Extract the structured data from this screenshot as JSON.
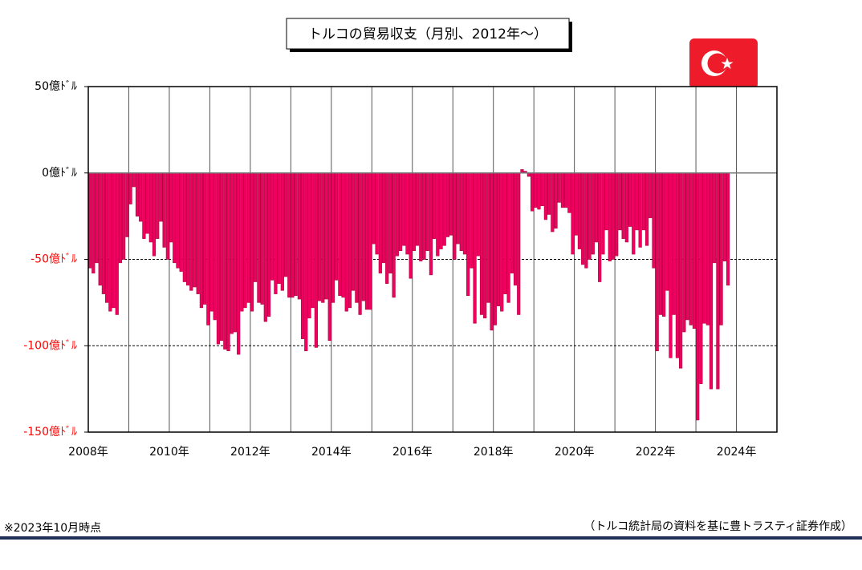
{
  "chart_data": {
    "type": "bar",
    "title": "トルコの貿易収支（月別、2012年～）",
    "note": "※2023年10月時点",
    "source": "（トルコ統計局の資料を基に豊トラスティ証券作成）",
    "color": "#f0005f",
    "negative_label_color": "#ff0000",
    "xlim": [
      2008,
      2025
    ],
    "xticks": [
      {
        "value": 2008,
        "label": "2008年"
      },
      {
        "value": 2010,
        "label": "2010年"
      },
      {
        "value": 2012,
        "label": "2012年"
      },
      {
        "value": 2014,
        "label": "2014年"
      },
      {
        "value": 2016,
        "label": "2016年"
      },
      {
        "value": 2018,
        "label": "2018年"
      },
      {
        "value": 2020,
        "label": "2020年"
      },
      {
        "value": 2022,
        "label": "2022年"
      },
      {
        "value": 2024,
        "label": "2024年"
      }
    ],
    "x_minor_ticks": [
      2009,
      2011,
      2013,
      2015,
      2017,
      2019,
      2021,
      2023,
      2025
    ],
    "ylim": [
      -150,
      50
    ],
    "yticks": [
      {
        "value": 50,
        "label": "50億ﾄﾞﾙ"
      },
      {
        "value": 0,
        "label": "0億ﾄﾞﾙ"
      },
      {
        "value": -50,
        "label": "-50億ﾄﾞﾙ"
      },
      {
        "value": -100,
        "label": "-100億ﾄﾞﾙ"
      },
      {
        "value": -150,
        "label": "-150億ﾄﾞﾙ"
      }
    ],
    "dashed_grid": [
      -50,
      -100
    ],
    "x": [
      2008,
      2008.083,
      2008.167,
      2008.25,
      2008.333,
      2008.417,
      2008.5,
      2008.583,
      2008.667,
      2008.75,
      2008.833,
      2008.917,
      2009,
      2009.083,
      2009.167,
      2009.25,
      2009.333,
      2009.417,
      2009.5,
      2009.583,
      2009.667,
      2009.75,
      2009.833,
      2009.917,
      2010,
      2010.083,
      2010.167,
      2010.25,
      2010.333,
      2010.417,
      2010.5,
      2010.583,
      2010.667,
      2010.75,
      2010.833,
      2010.917,
      2011,
      2011.083,
      2011.167,
      2011.25,
      2011.333,
      2011.417,
      2011.5,
      2011.583,
      2011.667,
      2011.75,
      2011.833,
      2011.917,
      2012,
      2012.083,
      2012.167,
      2012.25,
      2012.333,
      2012.417,
      2012.5,
      2012.583,
      2012.667,
      2012.75,
      2012.833,
      2012.917,
      2013,
      2013.083,
      2013.167,
      2013.25,
      2013.333,
      2013.417,
      2013.5,
      2013.583,
      2013.667,
      2013.75,
      2013.833,
      2013.917,
      2014,
      2014.083,
      2014.167,
      2014.25,
      2014.333,
      2014.417,
      2014.5,
      2014.583,
      2014.667,
      2014.75,
      2014.833,
      2014.917,
      2015,
      2015.083,
      2015.167,
      2015.25,
      2015.333,
      2015.417,
      2015.5,
      2015.583,
      2015.667,
      2015.75,
      2015.833,
      2015.917,
      2016,
      2016.083,
      2016.167,
      2016.25,
      2016.333,
      2016.417,
      2016.5,
      2016.583,
      2016.667,
      2016.75,
      2016.833,
      2016.917,
      2017,
      2017.083,
      2017.167,
      2017.25,
      2017.333,
      2017.417,
      2017.5,
      2017.583,
      2017.667,
      2017.75,
      2017.833,
      2017.917,
      2018,
      2018.083,
      2018.167,
      2018.25,
      2018.333,
      2018.417,
      2018.5,
      2018.583,
      2018.667,
      2018.75,
      2018.833,
      2018.917,
      2019,
      2019.083,
      2019.167,
      2019.25,
      2019.333,
      2019.417,
      2019.5,
      2019.583,
      2019.667,
      2019.75,
      2019.833,
      2019.917,
      2020,
      2020.083,
      2020.167,
      2020.25,
      2020.333,
      2020.417,
      2020.5,
      2020.583,
      2020.667,
      2020.75,
      2020.833,
      2020.917,
      2021,
      2021.083,
      2021.167,
      2021.25,
      2021.333,
      2021.417,
      2021.5,
      2021.583,
      2021.667,
      2021.75,
      2021.833,
      2021.917,
      2022,
      2022.083,
      2022.167,
      2022.25,
      2022.333,
      2022.417,
      2022.5,
      2022.583,
      2022.667,
      2022.75,
      2022.833,
      2022.917,
      2023,
      2023.083,
      2023.167,
      2023.25,
      2023.333,
      2023.417,
      2023.5,
      2023.583,
      2023.667,
      2023.75
    ],
    "values": [
      -55,
      -58,
      -52,
      -65,
      -70,
      -75,
      -80,
      -78,
      -82,
      -52,
      -50,
      -37,
      -18,
      -8,
      -25,
      -28,
      -38,
      -35,
      -40,
      -48,
      -38,
      -28,
      -43,
      -50,
      -40,
      -52,
      -55,
      -57,
      -63,
      -65,
      -68,
      -66,
      -70,
      -78,
      -76,
      -88,
      -80,
      -85,
      -99,
      -97,
      -102,
      -103,
      -93,
      -92,
      -105,
      -80,
      -78,
      -75,
      -80,
      -63,
      -75,
      -76,
      -86,
      -83,
      -62,
      -70,
      -64,
      -68,
      -60,
      -72,
      -72,
      -71,
      -73,
      -96,
      -103,
      -84,
      -78,
      -101,
      -74,
      -75,
      -73,
      -97,
      -75,
      -62,
      -71,
      -72,
      -80,
      -78,
      -68,
      -75,
      -82,
      -74,
      -79,
      -79,
      -41,
      -47,
      -58,
      -52,
      -64,
      -58,
      -72,
      -48,
      -45,
      -42,
      -47,
      -61,
      -45,
      -42,
      -51,
      -50,
      -45,
      -59,
      -38,
      -48,
      -44,
      -42,
      -37,
      -36,
      -50,
      -41,
      -45,
      -47,
      -71,
      -55,
      -87,
      -48,
      -82,
      -84,
      -75,
      -91,
      -88,
      -77,
      -80,
      -70,
      -75,
      -58,
      -65,
      -82,
      2,
      1,
      -2,
      -22,
      -20,
      -21,
      -19,
      -27,
      -24,
      -34,
      -32,
      -17,
      -20,
      -20,
      -23,
      -47,
      -36,
      -44,
      -53,
      -55,
      -50,
      -47,
      -40,
      -63,
      -47,
      -33,
      -51,
      -50,
      -48,
      -33,
      -38,
      -40,
      -31,
      -47,
      -33,
      -43,
      -33,
      -42,
      -26,
      -55,
      -103,
      -82,
      -83,
      -68,
      -107,
      -82,
      -107,
      -113,
      -92,
      -85,
      -88,
      -90,
      -143,
      -122,
      -87,
      -88,
      -125,
      -52,
      -125,
      -88,
      -51,
      -65
    ]
  }
}
